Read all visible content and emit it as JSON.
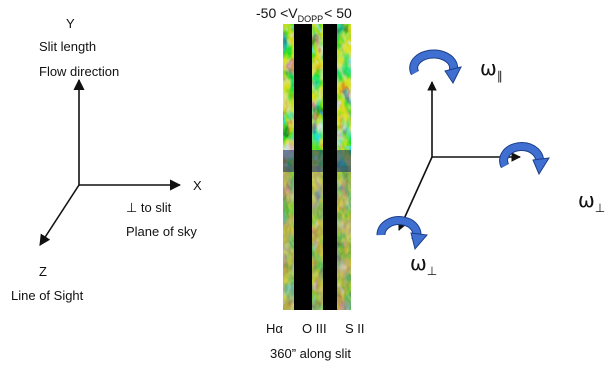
{
  "axes_left": {
    "y": {
      "letter": "Y",
      "line1": "Slit length",
      "line2": "Flow direction"
    },
    "x": {
      "letter": "X",
      "line1": "⊥ to slit",
      "line2": "Plane of sky"
    },
    "z": {
      "letter": "Z",
      "line1": "Line of Sight"
    }
  },
  "strip": {
    "title_prefix": "-50 <V",
    "title_subscript": "DOPP",
    "title_suffix": "< 50",
    "line_labels": [
      "Hα",
      "O III",
      "S II"
    ],
    "caption": "360” along slit"
  },
  "axes_right": {
    "omega_parallel": {
      "symbol": "ω",
      "subscript": "∥"
    },
    "omega_perp_right": {
      "symbol": "ω",
      "subscript": "⊥"
    },
    "omega_perp_lower": {
      "symbol": "ω",
      "subscript": "⊥"
    }
  },
  "colors": {
    "axis": "#111111",
    "rotation_arrow_fill": "#3f6fd0",
    "rotation_arrow_edge": "#1c3f8a",
    "slit_gap": "#000000"
  }
}
